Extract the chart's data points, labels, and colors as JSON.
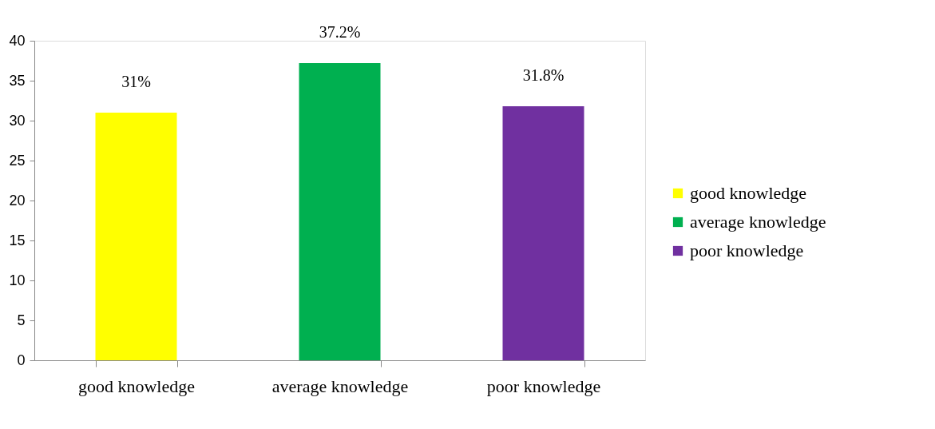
{
  "chart_data": {
    "type": "bar",
    "categories": [
      "good knowledge",
      "average knowledge",
      "poor knowledge"
    ],
    "series": [
      {
        "name": "good knowledge",
        "color": "#ffff00",
        "values": [
          31,
          null,
          null
        ],
        "value_labels": [
          "31%",
          null,
          null
        ]
      },
      {
        "name": "average knowledge",
        "color": "#00b050",
        "values": [
          null,
          37.2,
          null
        ],
        "value_labels": [
          null,
          "37.2%",
          null
        ]
      },
      {
        "name": "poor knowledge",
        "color": "#7030a0",
        "values": [
          null,
          null,
          31.8
        ],
        "value_labels": [
          null,
          null,
          "31.8%"
        ]
      }
    ],
    "ylim": [
      0,
      40
    ],
    "yticks": [
      0,
      5,
      10,
      15,
      20,
      25,
      30,
      35,
      40
    ],
    "grid": false,
    "legend": "right"
  }
}
